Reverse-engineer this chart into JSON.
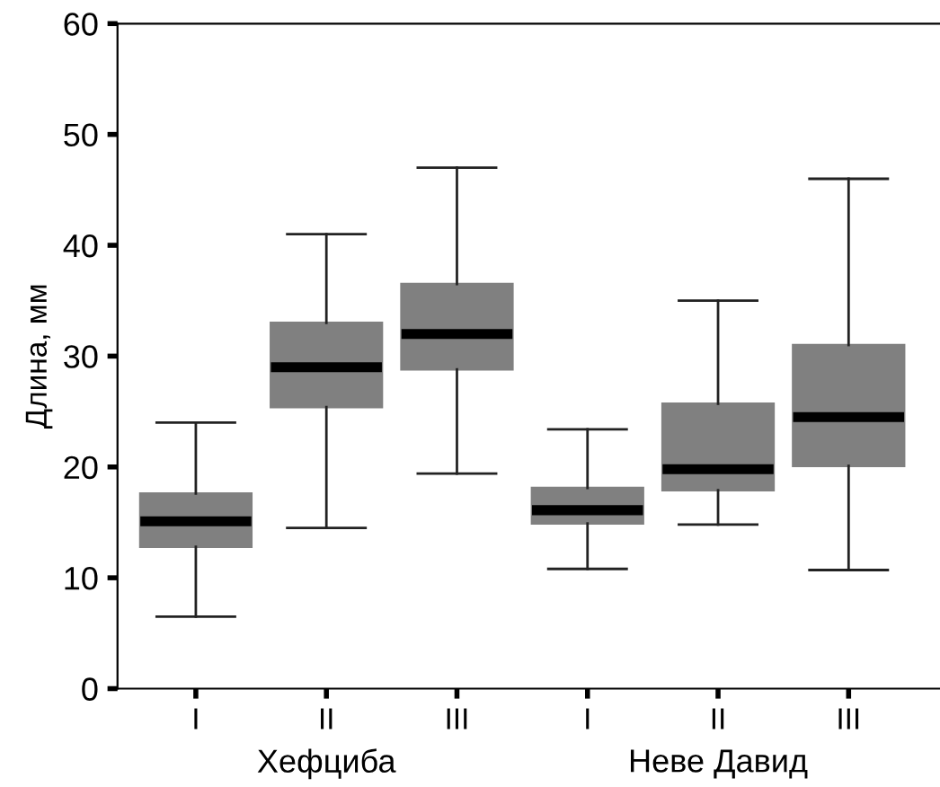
{
  "chart_data": {
    "type": "box",
    "ylabel": "Длина, мм",
    "categories": [
      "I",
      "II",
      "III",
      "I",
      "II",
      "III"
    ],
    "boxes": [
      {
        "low": 6.5,
        "q1": 12.8,
        "median": 15.1,
        "q3": 17.6,
        "high": 24
      },
      {
        "low": 14.5,
        "q1": 25.4,
        "median": 29,
        "q3": 33,
        "high": 41
      },
      {
        "low": 19.4,
        "q1": 28.8,
        "median": 32,
        "q3": 36.5,
        "high": 47
      },
      {
        "low": 10.8,
        "q1": 14.9,
        "median": 16.1,
        "q3": 18.1,
        "high": 23.4
      },
      {
        "low": 14.8,
        "q1": 17.9,
        "median": 19.8,
        "q3": 25.7,
        "high": 35
      },
      {
        "low": 10.7,
        "q1": 20.1,
        "median": 24.5,
        "q3": 31,
        "high": 46
      }
    ],
    "color": "#808080",
    "ylim": [
      0,
      60
    ],
    "yticks": [
      0,
      10,
      20,
      30,
      40,
      50,
      60
    ],
    "grid": false,
    "legend": false,
    "annotations": [
      "Хефциба",
      "Неве Давид"
    ]
  }
}
